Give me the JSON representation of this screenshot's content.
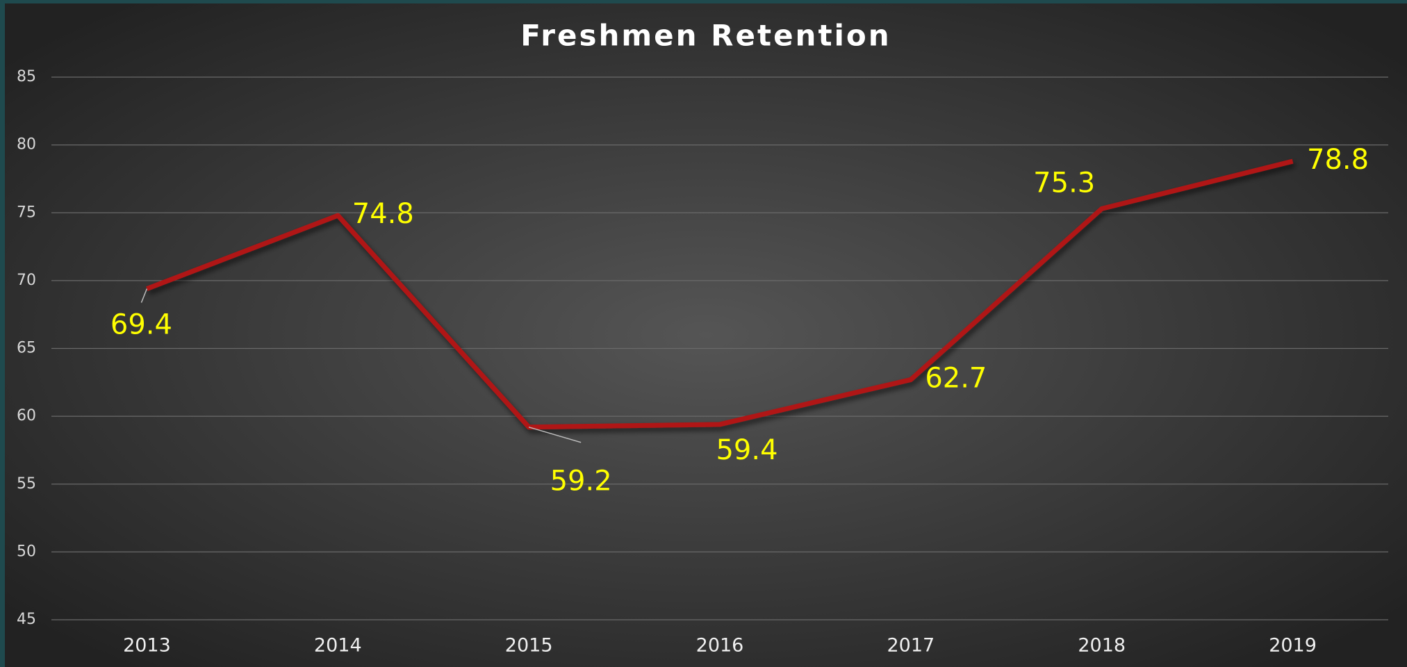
{
  "chart_data": {
    "type": "line",
    "title": "Freshmen Retention",
    "categories": [
      "2013",
      "2014",
      "2015",
      "2016",
      "2017",
      "2018",
      "2019"
    ],
    "series": [
      {
        "name": "Freshmen Retention",
        "color": "#b01414",
        "values": [
          69.4,
          74.8,
          59.2,
          59.4,
          62.7,
          75.3,
          78.8
        ]
      }
    ],
    "ylim": [
      45,
      85
    ],
    "yticks": [
      45,
      50,
      55,
      60,
      65,
      70,
      75,
      80,
      85
    ],
    "grid": true,
    "label_color": "#ffff00"
  }
}
